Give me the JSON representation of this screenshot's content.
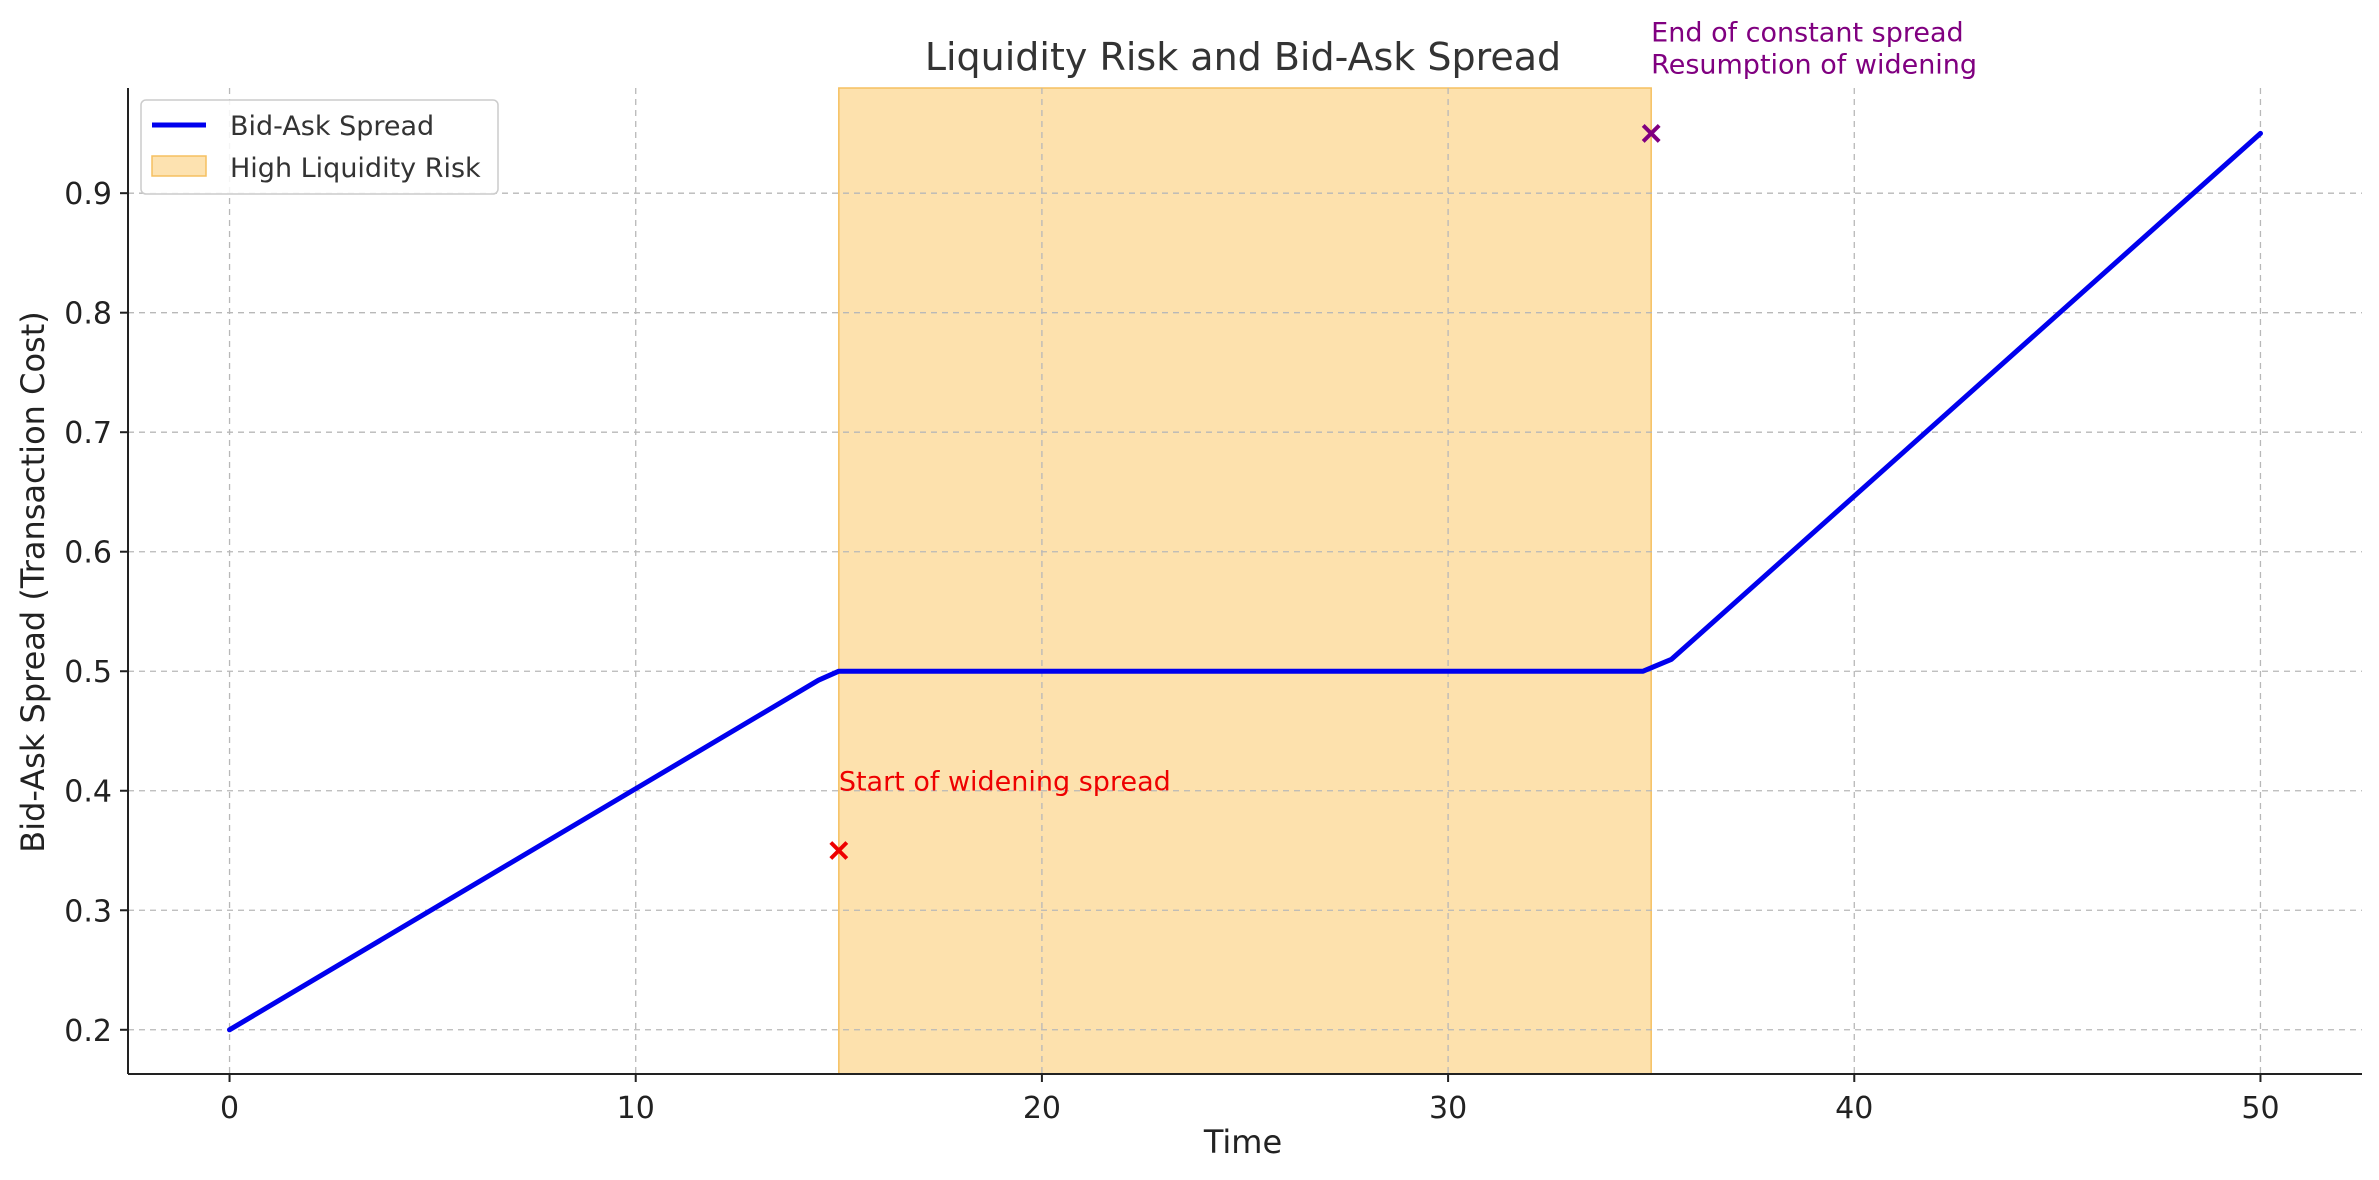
{
  "chart_data": {
    "type": "line",
    "title": "Liquidity Risk and Bid-Ask Spread",
    "xlabel": "Time",
    "ylabel": "Bid-Ask Spread (Transaction Cost)",
    "xlim": [
      -2.5,
      52.5
    ],
    "ylim": [
      0.163,
      0.988
    ],
    "xticks": [
      0,
      10,
      20,
      30,
      40,
      50
    ],
    "yticks": [
      0.2,
      0.3,
      0.4,
      0.5,
      0.6,
      0.7,
      0.8,
      0.9
    ],
    "grid": true,
    "legend_placement": "upper-left",
    "series": [
      {
        "name": "Bid-Ask Spread",
        "color": "#0000ee",
        "x": [
          0,
          14.5,
          15.0,
          34.8,
          35.5,
          50
        ],
        "y": [
          0.2,
          0.4925,
          0.5,
          0.5,
          0.51,
          0.95
        ]
      }
    ],
    "shaded_region": {
      "name": "High Liquidity Risk",
      "x_start": 15,
      "x_end": 35,
      "color": "#fcd58e"
    },
    "markers": [
      {
        "x": 15,
        "y": 0.35,
        "color": "#ee0000",
        "label": "Start of widening spread",
        "label_x": 15,
        "label_y": 0.4
      },
      {
        "x": 35,
        "y": 0.95,
        "color": "#800080",
        "label": "End of constant spread\nResumption of widening",
        "label_x": 35,
        "label_y": 1.0
      }
    ]
  }
}
